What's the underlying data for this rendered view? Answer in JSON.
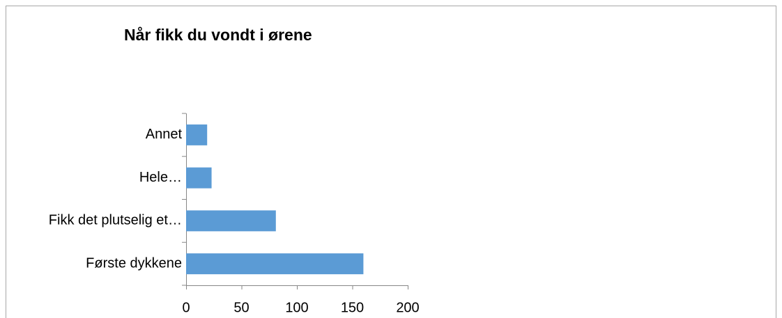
{
  "chart_data": {
    "type": "bar",
    "orientation": "horizontal",
    "title": "Når fikk du vondt i ørene",
    "categories": [
      "Annet",
      "Hele…",
      "Fikk det plutselig et…",
      "Første dykkene"
    ],
    "values": [
      19,
      23,
      81,
      160
    ],
    "color": "#5b9bd5",
    "xlim": [
      0,
      200
    ],
    "xticks": [
      0,
      50,
      100,
      150,
      200
    ],
    "grid": false
  }
}
